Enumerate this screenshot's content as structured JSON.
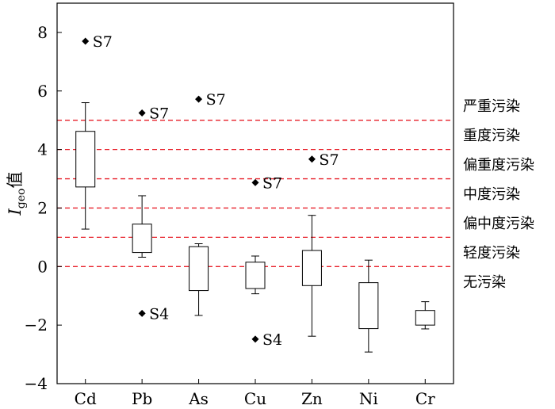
{
  "chart_data": {
    "type": "box",
    "ylabel": {
      "main": "I",
      "sub": "geo",
      "suffix": "值"
    },
    "ylim": [
      -4,
      9
    ],
    "yticks": [
      -4,
      -2,
      0,
      2,
      4,
      6,
      8
    ],
    "ytick_labels": [
      "−4",
      "−2",
      "0",
      "2",
      "4",
      "6",
      "8"
    ],
    "categories": [
      "Cd",
      "Pb",
      "As",
      "Cu",
      "Zn",
      "Ni",
      "Cr"
    ],
    "boxes": [
      {
        "name": "Cd",
        "whisker_low": 1.28,
        "q1": 2.72,
        "q3": 4.62,
        "whisker_high": 5.6
      },
      {
        "name": "Pb",
        "whisker_low": 0.32,
        "q1": 0.48,
        "q3": 1.45,
        "whisker_high": 2.42
      },
      {
        "name": "As",
        "whisker_low": -1.67,
        "q1": -0.82,
        "q3": 0.68,
        "whisker_high": 0.78
      },
      {
        "name": "Cu",
        "whisker_low": -0.93,
        "q1": -0.75,
        "q3": 0.15,
        "whisker_high": 0.36
      },
      {
        "name": "Zn",
        "whisker_low": -2.38,
        "q1": -0.65,
        "q3": 0.55,
        "whisker_high": 1.75
      },
      {
        "name": "Ni",
        "whisker_low": -2.92,
        "q1": -2.12,
        "q3": -0.55,
        "whisker_high": 0.22
      },
      {
        "name": "Cr",
        "whisker_low": -2.13,
        "q1": -2.0,
        "q3": -1.5,
        "whisker_high": -1.2
      }
    ],
    "outliers": [
      {
        "category": "Cd",
        "y": 7.7,
        "label": "S7"
      },
      {
        "category": "Pb",
        "y": 5.25,
        "label": "S7"
      },
      {
        "category": "Pb",
        "y": -1.6,
        "label": "S4"
      },
      {
        "category": "As",
        "y": 5.72,
        "label": "S7"
      },
      {
        "category": "Cu",
        "y": 2.87,
        "label": "S7"
      },
      {
        "category": "Cu",
        "y": -2.48,
        "label": "S4"
      },
      {
        "category": "Zn",
        "y": 3.67,
        "label": "S7"
      }
    ],
    "reference_lines": {
      "values": [
        0,
        1,
        2,
        3,
        4,
        5
      ],
      "color": "#e8202a",
      "style": "dashed"
    },
    "pollution_levels": [
      {
        "label": "严重污染",
        "y": 5.5
      },
      {
        "label": "重度污染",
        "y": 4.5
      },
      {
        "label": "偏重度污染",
        "y": 3.5
      },
      {
        "label": "中度污染",
        "y": 2.5
      },
      {
        "label": "偏中度污染",
        "y": 1.5
      },
      {
        "label": "轻度污染",
        "y": 0.5
      },
      {
        "label": "无污染",
        "y": -0.5
      }
    ]
  }
}
